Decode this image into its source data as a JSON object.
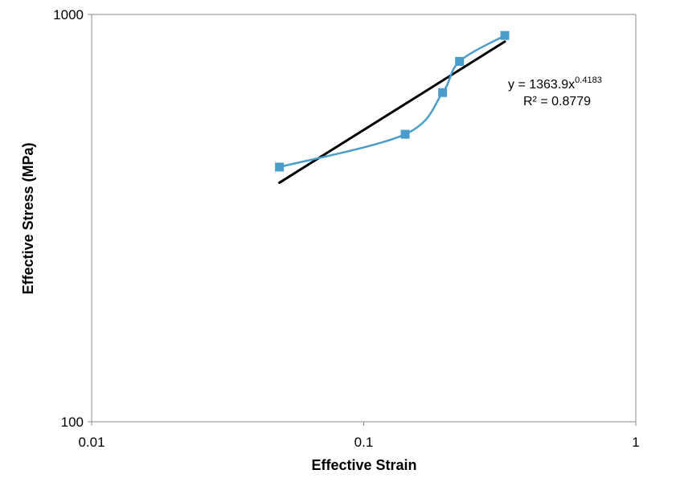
{
  "chart_data": {
    "type": "scatter",
    "xlabel": "Effective Strain",
    "ylabel": "Effective Stress (MPa)",
    "x_scale": "log",
    "y_scale": "log",
    "xlim": [
      0.01,
      1
    ],
    "ylim": [
      100,
      1000
    ],
    "x_ticks": [
      "0.01",
      "0.1",
      "1"
    ],
    "y_ticks": [
      "100",
      "1000"
    ],
    "grid": false,
    "legend": "none",
    "series": [
      {
        "color": "#4a9ccb",
        "marker": "square",
        "line": "smooth",
        "x": [
          0.049,
          0.142,
          0.195,
          0.225,
          0.33
        ],
        "y": [
          422,
          508,
          643,
          767,
          888
        ]
      }
    ],
    "trendline": {
      "type": "power",
      "color": "#000000",
      "coefficient": 1363.9,
      "exponent": 0.4183,
      "x_range": [
        0.049,
        0.33
      ]
    },
    "annotations": {
      "equation_prefix": "y = 1363.9x",
      "equation_exponent": "0.4183",
      "r_squared": "R² = 0.8779"
    }
  }
}
